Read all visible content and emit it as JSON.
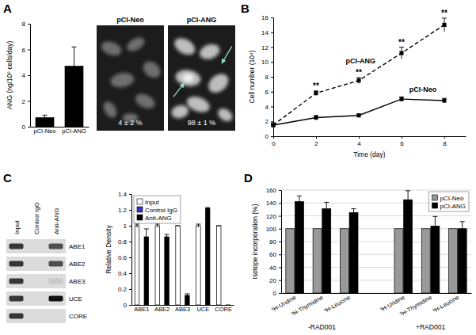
{
  "chart_data": [
    {
      "type": "bar",
      "title": "A",
      "y_label": "ANG (ng/10⁶ cells/day)",
      "categories": [
        "pCI-Neo",
        "pCI-ANG"
      ],
      "values": [
        0.7,
        4.7
      ],
      "errors": [
        0.2,
        1.5
      ],
      "color": "#000000",
      "ylim": [
        0,
        8
      ],
      "yticks": [
        0,
        2,
        4,
        6,
        8
      ],
      "annotations": [
        "4 ± 2 %",
        "98 ± 1 %"
      ]
    },
    {
      "type": "line",
      "title": "B",
      "x_label": "Time (day)",
      "y_label": "Cell number (10⁴)",
      "x": [
        0,
        2,
        4,
        6,
        8
      ],
      "xlim": [
        0,
        9
      ],
      "xticks": [
        0,
        2,
        4,
        6,
        8
      ],
      "ylim": [
        0,
        16
      ],
      "yticks": [
        0,
        2,
        4,
        6,
        8,
        10,
        12,
        14,
        16
      ],
      "series": [
        {
          "name": "pCI-ANG",
          "color": "#000000",
          "line_style": "dashed",
          "marker": "square",
          "values": [
            1.5,
            5.8,
            7.5,
            11.2,
            15
          ],
          "errors": [
            0.3,
            0.3,
            0.4,
            0.8,
            0.9
          ],
          "annotations": [
            null,
            "**",
            "**",
            "**",
            "**"
          ]
        },
        {
          "name": "pCI-Neo",
          "color": "#000000",
          "line_style": "solid",
          "marker": "square",
          "values": [
            1.5,
            2.5,
            2.8,
            5,
            4.8
          ],
          "errors": [
            0.1,
            0.3,
            0.2,
            0.3,
            0.3
          ]
        }
      ]
    },
    {
      "type": "bar",
      "title": "C",
      "y_label": "Relative Density",
      "categories": [
        "ABE1",
        "ABE2",
        "ABE3",
        "UCE",
        "CORE"
      ],
      "ylim": [
        0,
        1.4
      ],
      "yticks": [
        0,
        0.2,
        0.4,
        0.6,
        0.8,
        1,
        1.2,
        1.4
      ],
      "legend": "top-left",
      "series": [
        {
          "name": "Input",
          "color": "#ffffff",
          "values": [
            1,
            1,
            1,
            1,
            1
          ],
          "errors": [
            0.02,
            0.02,
            0,
            0.02,
            0
          ]
        },
        {
          "name": "Control IgG",
          "color": "#3333cc",
          "values": [
            0,
            0,
            0,
            0,
            0
          ]
        },
        {
          "name": "Anti-ANG",
          "color": "#000000",
          "values": [
            0.86,
            0.86,
            0.12,
            1.22,
            0
          ],
          "errors": [
            0.1,
            0.03,
            0.02,
            0.01,
            0
          ]
        }
      ]
    },
    {
      "type": "bar",
      "title": "D",
      "y_label": "Isotope incorporation (%)",
      "categories": [
        "³H-Uridine",
        "³H-Thymidine",
        "³H-Leucine",
        null,
        "³H-Uridine",
        "³H-Thymidine",
        "³H-Leucine"
      ],
      "ylim": [
        0,
        160
      ],
      "yticks": [
        0,
        20,
        40,
        60,
        80,
        100,
        120,
        140,
        160
      ],
      "grid": true,
      "legend": "top-right",
      "annotations": [
        "-RAD001",
        "+RAD001"
      ],
      "series": [
        {
          "name": "pCI-Neo",
          "color": "#999999",
          "values": [
            100,
            100,
            100,
            null,
            100,
            100,
            100
          ]
        },
        {
          "name": "pCI-ANG",
          "color": "#000000",
          "values": [
            142,
            131,
            125,
            null,
            145,
            104,
            100
          ],
          "errors": [
            9,
            10,
            6,
            null,
            14,
            15,
            11
          ]
        }
      ]
    }
  ]
}
